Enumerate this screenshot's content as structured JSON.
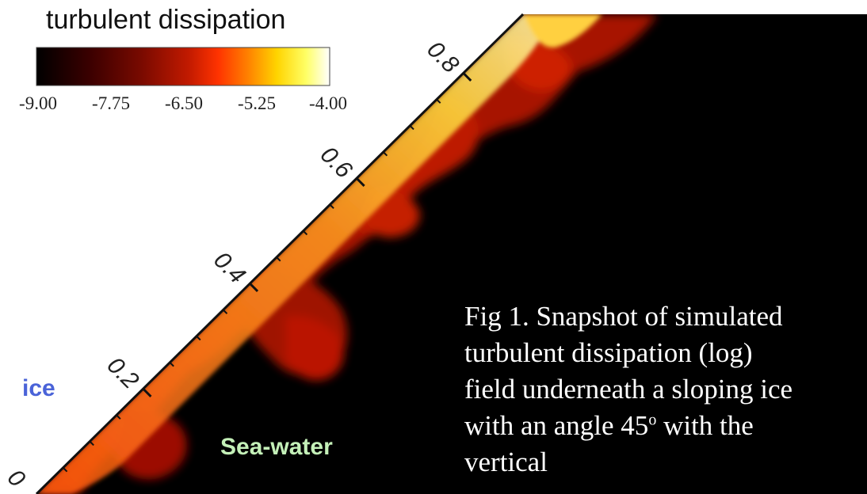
{
  "chart_data": {
    "type": "heatmap",
    "title": "turbulent dissipation",
    "colorbar": {
      "range": [
        -9.0,
        -4.0
      ],
      "ticks": [
        "-9.00",
        "-7.75",
        "-6.50",
        "-5.25",
        "-4.00"
      ],
      "colors": [
        "#000000",
        "#3a0000",
        "#7a0a00",
        "#c21a00",
        "#ff3300",
        "#ff8000",
        "#ffd400",
        "#ffff66",
        "#ffffff"
      ]
    },
    "axis": {
      "orientation": "along ice slope, 45 degrees",
      "tick_labels": [
        "0",
        "0.2",
        "0.4",
        "0.6",
        "0.8"
      ]
    },
    "region_labels": {
      "ice": "ice",
      "sea": "Sea-water"
    },
    "background_color": "#000000",
    "caption": [
      "Fig 1. Snapshot of simulated",
      "turbulent dissipation (log)",
      "field underneath a sloping ice",
      "with an angle 45",
      "o",
      " with the",
      "vertical"
    ]
  }
}
